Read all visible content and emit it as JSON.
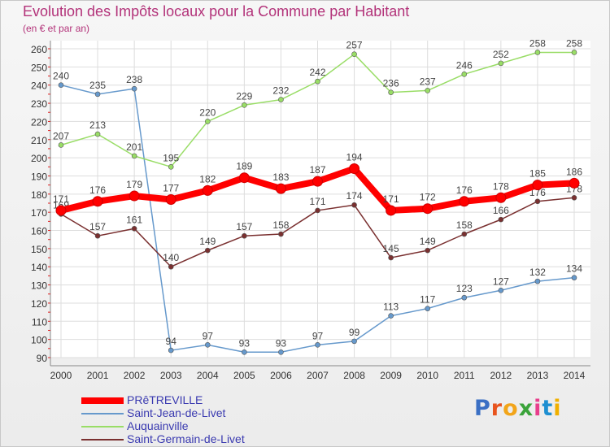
{
  "title": "Evolution des Impôts locaux pour la Commune par Habitant",
  "subtitle": "(en € et par an)",
  "logo": {
    "text": "Proxiti",
    "letter_colors": [
      "#3a6fc4",
      "#e8541e",
      "#f2a51a",
      "#3aa33a",
      "#e83e8c",
      "#1e8fd1",
      "#f0b000"
    ]
  },
  "chart_data": {
    "type": "line",
    "title": "Evolution des Impôts locaux pour la Commune par Habitant",
    "subtitle": "(en € et par an)",
    "x": [
      2000,
      2001,
      2002,
      2003,
      2004,
      2005,
      2006,
      2007,
      2008,
      2009,
      2010,
      2011,
      2012,
      2013,
      2014
    ],
    "ylim": [
      90,
      260
    ],
    "yticks": [
      90,
      100,
      110,
      120,
      130,
      140,
      150,
      160,
      170,
      180,
      190,
      200,
      210,
      220,
      230,
      240,
      250,
      260
    ],
    "grid": true,
    "legend_position": "bottom-left",
    "series": [
      {
        "name": "PRêTREVILLE",
        "color": "#ff0000",
        "emphasis": true,
        "values": [
          171,
          176,
          179,
          177,
          182,
          189,
          183,
          187,
          194,
          171,
          172,
          176,
          178,
          185,
          186
        ]
      },
      {
        "name": "Saint-Jean-de-Livet",
        "color": "#6699cc",
        "values": [
          240,
          235,
          238,
          94,
          97,
          93,
          93,
          97,
          99,
          113,
          117,
          123,
          127,
          132,
          134
        ]
      },
      {
        "name": "Auquainville",
        "color": "#99dd66",
        "values": [
          207,
          213,
          201,
          195,
          220,
          229,
          232,
          242,
          257,
          236,
          237,
          246,
          252,
          258,
          258
        ]
      },
      {
        "name": "Saint-Germain-de-Livet",
        "color": "#7a3030",
        "values": [
          169,
          157,
          161,
          140,
          149,
          157,
          158,
          171,
          174,
          145,
          149,
          158,
          166,
          176,
          178
        ]
      }
    ]
  }
}
